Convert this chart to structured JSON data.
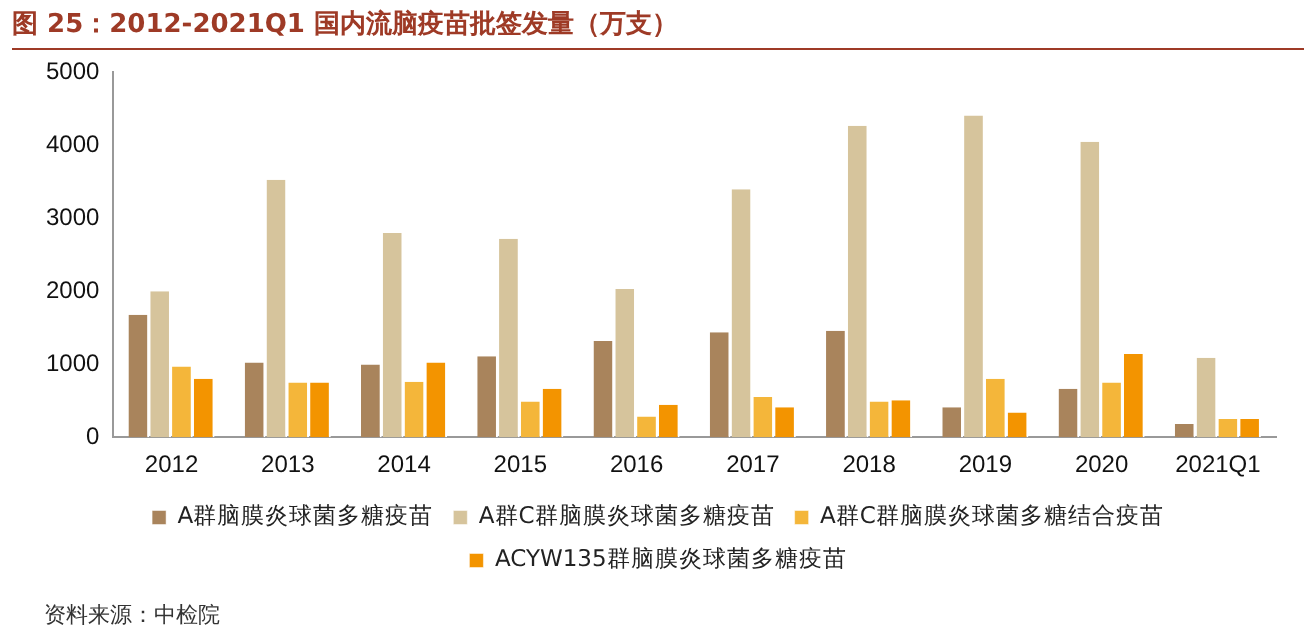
{
  "chart_data": {
    "type": "bar",
    "title": "图 25：2012-2021Q1 国内流脑疫苗批签发量（万支）",
    "categories": [
      "2012",
      "2013",
      "2014",
      "2015",
      "2016",
      "2017",
      "2018",
      "2019",
      "2020",
      "2021Q1"
    ],
    "series": [
      {
        "name": "A群脑膜炎球菌多糖疫苗",
        "color": "#a9845c",
        "values": [
          1680,
          1025,
          995,
          1110,
          1320,
          1440,
          1460,
          410,
          665,
          180
        ]
      },
      {
        "name": "A群C群脑膜炎球菌多糖疫苗",
        "color": "#d6c49c",
        "values": [
          2000,
          3530,
          2800,
          2720,
          2030,
          3400,
          4270,
          4410,
          4050,
          1090
        ]
      },
      {
        "name": "A群C群脑膜炎球菌多糖结合疫苗",
        "color": "#f4b63a",
        "values": [
          970,
          750,
          760,
          490,
          285,
          550,
          490,
          800,
          750,
          250
        ]
      },
      {
        "name": "ACYW135群脑膜炎球菌多糖疫苗",
        "color": "#f39400",
        "values": [
          800,
          750,
          1025,
          665,
          445,
          410,
          505,
          340,
          1140,
          250
        ]
      }
    ],
    "ylim": [
      0,
      5000
    ],
    "yticks": [
      0,
      1000,
      2000,
      3000,
      4000,
      5000
    ],
    "grid": false,
    "legend": "bottom",
    "annotations": [
      "资料来源：中检院"
    ]
  }
}
